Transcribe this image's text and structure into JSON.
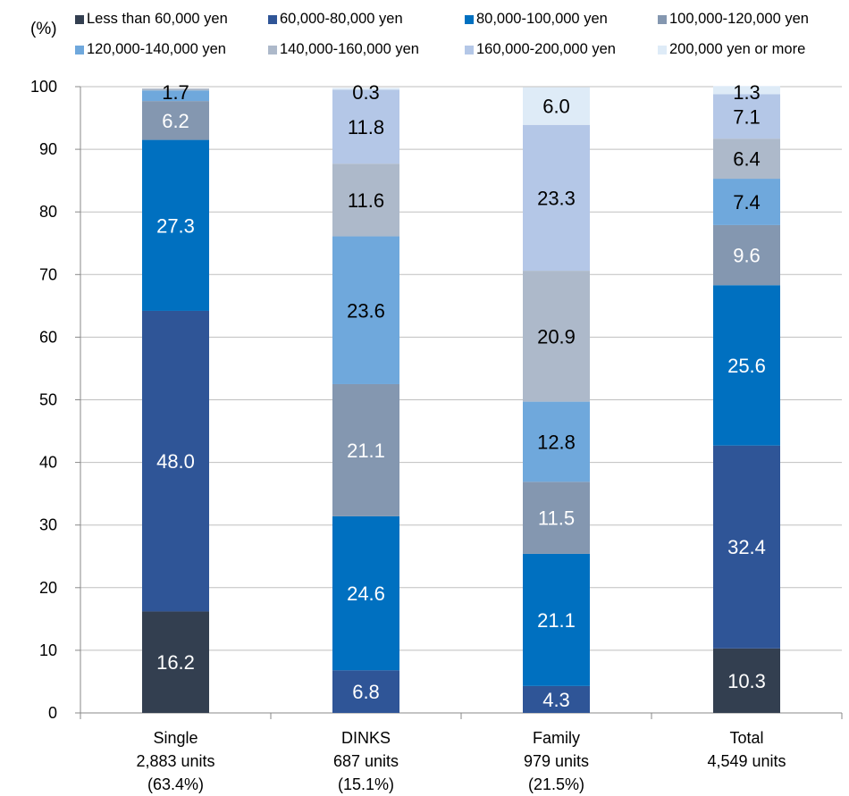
{
  "chart_data": {
    "type": "bar",
    "stacked": true,
    "unit_label": "(%)",
    "title": "",
    "xlabel": "",
    "ylabel": "",
    "ylim": [
      0,
      100
    ],
    "yticks": [
      0,
      10,
      20,
      30,
      40,
      50,
      60,
      70,
      80,
      90,
      100
    ],
    "grid": true,
    "legend_position": "top",
    "categories": [
      [
        "Single",
        "2,883 units",
        "(63.4%)"
      ],
      [
        "DINKS",
        "687 units",
        "(15.1%)"
      ],
      [
        "Family",
        "979 units",
        "(21.5%)"
      ],
      [
        "Total",
        "4,549 units"
      ]
    ],
    "series": [
      {
        "name": "Less than 60,000 yen",
        "color": "#333f50",
        "label_color": "#ffffff",
        "values": [
          16.2,
          0.0,
          0.0,
          10.3
        ]
      },
      {
        "name": "60,000-80,000 yen",
        "color": "#2f5597",
        "label_color": "#ffffff",
        "values": [
          48.0,
          6.8,
          4.3,
          32.4
        ]
      },
      {
        "name": "80,000-100,000 yen",
        "color": "#0070c0",
        "label_color": "#ffffff",
        "values": [
          27.3,
          24.6,
          21.1,
          25.6
        ]
      },
      {
        "name": "100,000-120,000 yen",
        "color": "#8497b0",
        "label_color": "#ffffff",
        "values": [
          6.2,
          21.1,
          11.5,
          9.6
        ]
      },
      {
        "name": "120,000-140,000 yen",
        "color": "#6fa8dc",
        "label_color": "#000000",
        "values": [
          1.7,
          23.6,
          12.8,
          7.4
        ]
      },
      {
        "name": "140,000-160,000 yen",
        "color": "#adb9ca",
        "label_color": "#000000",
        "values": [
          0.3,
          11.6,
          20.9,
          6.4
        ]
      },
      {
        "name": "160,000-200,000 yen",
        "color": "#b4c7e7",
        "label_color": "#000000",
        "values": [
          0.0,
          11.8,
          23.3,
          7.1
        ]
      },
      {
        "name": "200,000 yen or more",
        "color": "#deebf7",
        "label_color": "#000000",
        "values": [
          0.0,
          0.3,
          6.0,
          1.3
        ]
      }
    ],
    "data_labels": [
      [
        {
          "series": 0,
          "text": "16.2"
        },
        {
          "series": 1,
          "text": "48.0"
        },
        {
          "series": 2,
          "text": "27.3"
        },
        {
          "series": 3,
          "text": "6.2"
        },
        {
          "series": 4,
          "text": "1.7"
        }
      ],
      [
        {
          "series": 1,
          "text": "6.8"
        },
        {
          "series": 2,
          "text": "24.6"
        },
        {
          "series": 3,
          "text": "21.1"
        },
        {
          "series": 4,
          "text": "23.6"
        },
        {
          "series": 5,
          "text": "11.6"
        },
        {
          "series": 6,
          "text": "11.8"
        },
        {
          "series": 7,
          "text": "0.3"
        }
      ],
      [
        {
          "series": 1,
          "text": "4.3"
        },
        {
          "series": 2,
          "text": "21.1"
        },
        {
          "series": 3,
          "text": "11.5"
        },
        {
          "series": 4,
          "text": "12.8"
        },
        {
          "series": 5,
          "text": "20.9"
        },
        {
          "series": 6,
          "text": "23.3"
        },
        {
          "series": 7,
          "text": "6.0"
        }
      ],
      [
        {
          "series": 0,
          "text": "10.3"
        },
        {
          "series": 1,
          "text": "32.4"
        },
        {
          "series": 2,
          "text": "25.6"
        },
        {
          "series": 3,
          "text": "9.6"
        },
        {
          "series": 4,
          "text": "7.4"
        },
        {
          "series": 5,
          "text": "6.4"
        },
        {
          "series": 6,
          "text": "7.1"
        },
        {
          "series": 7,
          "text": "1.3"
        }
      ]
    ]
  }
}
